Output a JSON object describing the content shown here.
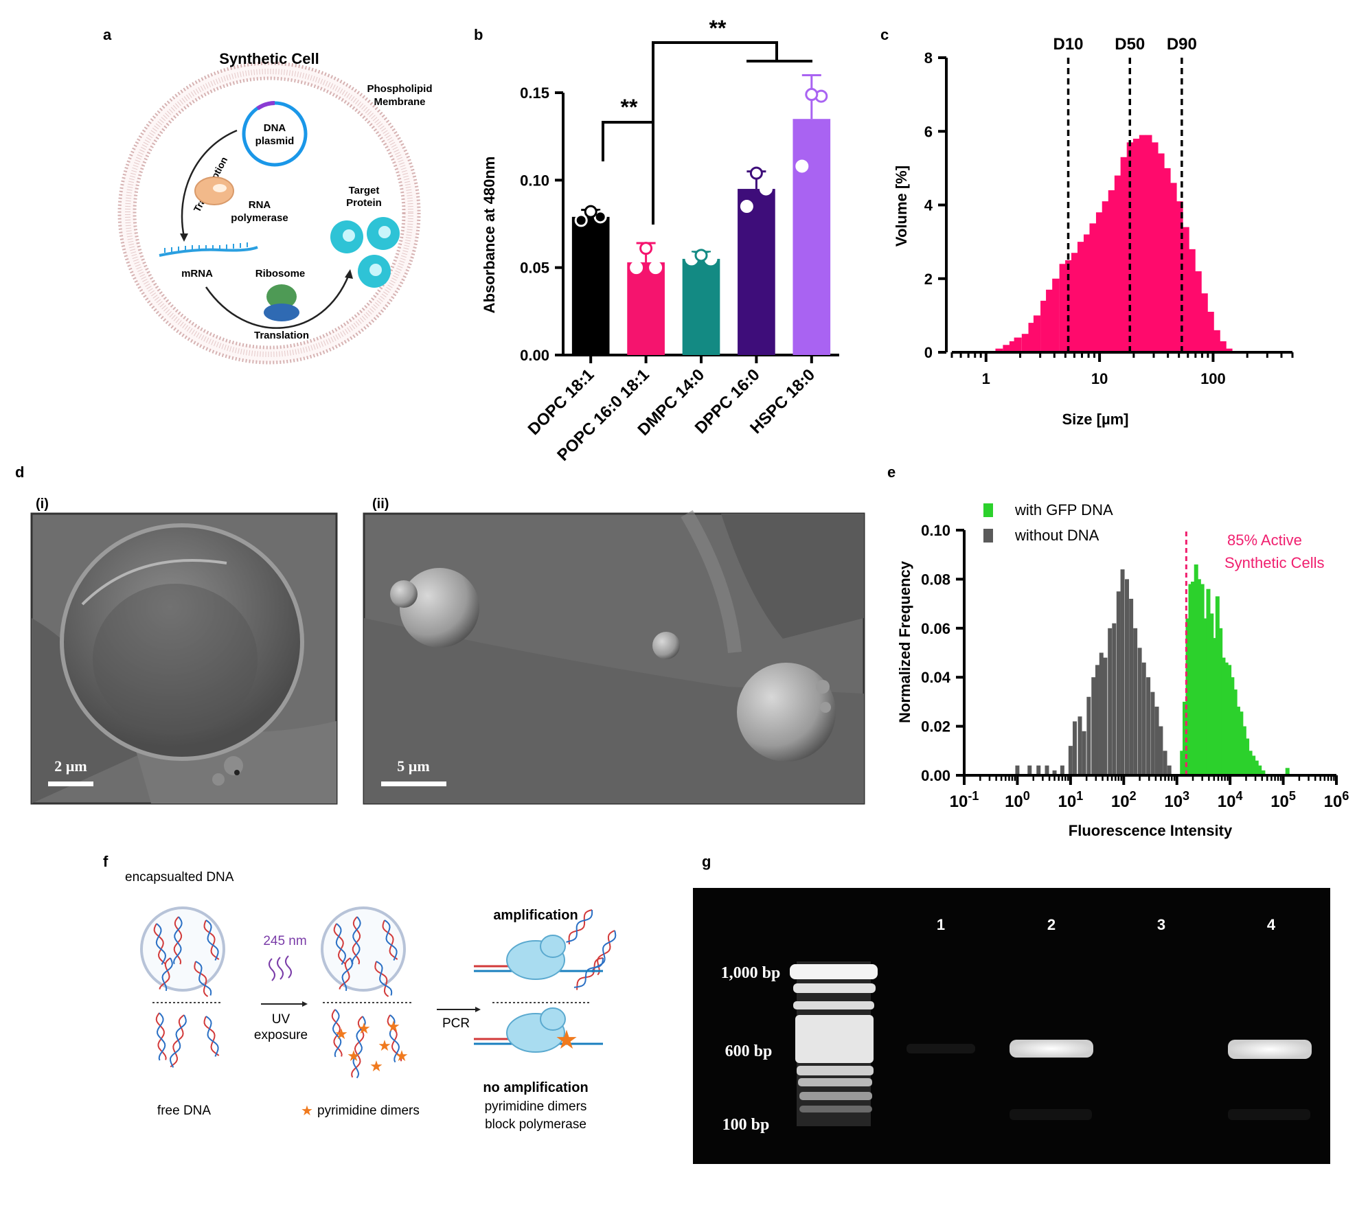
{
  "panels": {
    "a": {
      "label": "a",
      "title": "Synthetic Cell",
      "membrane_label": [
        "Phospholipid",
        "Membrane"
      ],
      "dna_label": [
        "DNA",
        "plasmid"
      ],
      "transcription": "Transcription",
      "rna_pol": [
        "RNA",
        "polymerase"
      ],
      "mrna": "mRNA",
      "ribosome": "Ribosome",
      "translation": "Translation",
      "target": [
        "Target",
        "Protein"
      ]
    },
    "b": {
      "label": "b"
    },
    "c": {
      "label": "c"
    },
    "d": {
      "label": "d",
      "sub_i": "(i)",
      "sub_ii": "(ii)",
      "scale_i": "2 µm",
      "scale_ii": "5 µm"
    },
    "e": {
      "label": "e"
    },
    "f": {
      "label": "f",
      "encapsulated": "encapsualted DNA",
      "wavelength": "245 nm",
      "uv": [
        "UV",
        "exposure"
      ],
      "pcr": "PCR",
      "amplification": "amplification",
      "free_dna": "free DNA",
      "dimers_legend": "pyrimidine dimers",
      "no_amp": "no amplification",
      "no_amp_desc": [
        "pyrimidine dimers",
        "block polymerase"
      ]
    },
    "g": {
      "label": "g",
      "lanes": [
        "1",
        "2",
        "3",
        "4"
      ],
      "markers": [
        "1,000 bp",
        "600 bp",
        "100 bp"
      ]
    }
  },
  "chart_data": [
    {
      "panel": "b",
      "type": "bar",
      "ylabel": "Absorbance at 480nm",
      "ylim": [
        0,
        0.15
      ],
      "yticks": [
        "0.00",
        "0.05",
        "0.10",
        "0.15"
      ],
      "categories": [
        "DOPC 18:1",
        "POPC 16:0 18:1",
        "DMPC 14:0",
        "DPPC 16:0",
        "HSPC 18:0"
      ],
      "values": [
        0.079,
        0.053,
        0.055,
        0.095,
        0.135
      ],
      "errors": [
        0.004,
        0.011,
        0.004,
        0.01,
        0.025
      ],
      "points": [
        [
          0.077,
          0.079,
          0.082
        ],
        [
          0.05,
          0.05,
          0.061
        ],
        [
          0.055,
          0.055,
          0.057
        ],
        [
          0.085,
          0.095,
          0.104
        ],
        [
          0.108,
          0.148,
          0.149
        ]
      ],
      "colors": [
        "#000000",
        "#f5146e",
        "#138a83",
        "#3e0d7a",
        "#a963f2"
      ],
      "significance": [
        "**",
        "**"
      ]
    },
    {
      "panel": "c",
      "type": "bar",
      "xlabel": "Size [µm]",
      "ylabel": "Volume [%]",
      "xscale": "log",
      "xlim": [
        0.5,
        500
      ],
      "ylim": [
        0,
        8
      ],
      "yticks": [
        "0",
        "2",
        "4",
        "6",
        "8"
      ],
      "xticks": [
        "1",
        "10",
        "100"
      ],
      "color": "#ff0a6c",
      "bins_x": [
        1.3,
        1.5,
        1.7,
        1.9,
        2.2,
        2.5,
        2.8,
        3.2,
        3.6,
        4.1,
        4.7,
        5.3,
        6.0,
        6.8,
        7.7,
        8.7,
        9.9,
        11.2,
        12.7,
        14.4,
        16.3,
        18.5,
        21,
        23.8,
        27,
        30.6,
        34.7,
        39.4,
        44.6,
        50.6,
        57.4,
        65.1,
        73.8,
        83.7,
        94.9,
        107.6,
        122,
        138
      ],
      "bins_y": [
        0.1,
        0.2,
        0.3,
        0.4,
        0.5,
        0.8,
        1.0,
        1.4,
        1.7,
        2.0,
        2.4,
        2.5,
        2.7,
        3.0,
        3.2,
        3.5,
        3.8,
        4.1,
        4.4,
        4.8,
        5.3,
        5.7,
        5.8,
        5.9,
        5.9,
        5.7,
        5.4,
        5.0,
        4.6,
        4.1,
        3.4,
        2.8,
        2.2,
        1.6,
        1.1,
        0.6,
        0.3,
        0.1
      ],
      "lines": [
        {
          "label": "D10",
          "x": 5.3
        },
        {
          "label": "D50",
          "x": 18.5
        },
        {
          "label": "D90",
          "x": 53
        }
      ]
    },
    {
      "panel": "e",
      "type": "bar",
      "xlabel": "Fluorescence Intensity",
      "ylabel": "Normalized Frequency",
      "xscale": "log",
      "xlim": [
        0.1,
        1000000
      ],
      "ylim": [
        0,
        0.1
      ],
      "yticks": [
        "0.00",
        "0.02",
        "0.04",
        "0.06",
        "0.08",
        "0.10"
      ],
      "xticks": [
        "10-1",
        "100",
        "101",
        "102",
        "103",
        "104",
        "105",
        "106"
      ],
      "series": [
        {
          "name": "without DNA",
          "color": "#5a5a5a",
          "x": [
            1.0,
            1.7,
            2.5,
            3.6,
            5.0,
            7.0,
            10,
            12,
            15,
            18,
            22,
            27,
            32,
            38,
            45,
            55,
            66,
            80,
            95,
            115,
            138,
            165,
            200,
            240,
            290,
            350,
            420,
            500,
            600,
            720
          ],
          "y": [
            0.004,
            0.004,
            0.004,
            0.004,
            0.002,
            0.004,
            0.012,
            0.022,
            0.024,
            0.018,
            0.032,
            0.04,
            0.045,
            0.05,
            0.048,
            0.06,
            0.062,
            0.075,
            0.084,
            0.08,
            0.072,
            0.06,
            0.052,
            0.046,
            0.04,
            0.034,
            0.028,
            0.02,
            0.01,
            0.004
          ]
        },
        {
          "name": "with GFP DNA",
          "color": "#2cd12c",
          "x": [
            1250,
            1400,
            1600,
            1800,
            2000,
            2300,
            2600,
            3000,
            3400,
            3900,
            4500,
            5100,
            5800,
            6600,
            7500,
            8500,
            9700,
            11000,
            12500,
            14200,
            16200,
            18500,
            21000,
            24000,
            27500,
            31500,
            36000,
            42000,
            120000
          ],
          "y": [
            0.01,
            0.03,
            0.064,
            0.078,
            0.079,
            0.086,
            0.08,
            0.078,
            0.064,
            0.076,
            0.066,
            0.056,
            0.073,
            0.06,
            0.048,
            0.046,
            0.045,
            0.04,
            0.035,
            0.028,
            0.026,
            0.02,
            0.015,
            0.01,
            0.008,
            0.006,
            0.004,
            0.002,
            0.003
          ]
        }
      ],
      "annotation": [
        "85% Active",
        "Synthetic Cells"
      ],
      "annotation_x": 1500,
      "annotation_color": "#f01e6e"
    }
  ]
}
